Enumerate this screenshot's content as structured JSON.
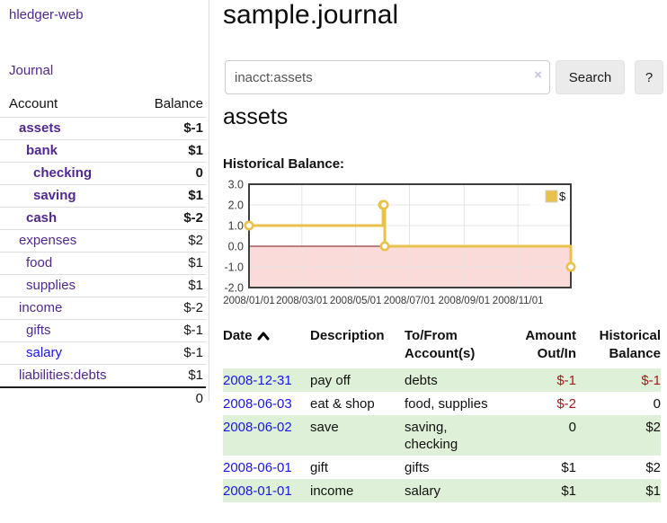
{
  "colors": {
    "purple_link": "#52288e",
    "blue_link": "#1b16e8",
    "negative": "#9e1a1a",
    "negative_muted": "#c48888",
    "row_stripe_green": "#dff0d8",
    "chart_line_gold": "#e8c24a",
    "chart_negative_fill": "#fbdada",
    "chart_zero_line": "#7d1010"
  },
  "brand": {
    "label": "hledger-web"
  },
  "nav": {
    "journal": "Journal"
  },
  "sidebar": {
    "header": {
      "account": "Account",
      "balance": "Balance"
    },
    "accounts": [
      {
        "name": "assets",
        "level": 1,
        "bold": true,
        "name_tone": "purple",
        "balance": "$-1",
        "balance_tone": "neg"
      },
      {
        "name": "bank",
        "level": 2,
        "bold": true,
        "name_tone": "purple",
        "balance": "$1",
        "balance_tone": ""
      },
      {
        "name": "checking",
        "level": 3,
        "bold": true,
        "name_tone": "purple",
        "balance": "0",
        "balance_tone": ""
      },
      {
        "name": "saving",
        "level": 3,
        "bold": true,
        "name_tone": "purple",
        "balance": "$1",
        "balance_tone": ""
      },
      {
        "name": "cash",
        "level": 2,
        "bold": true,
        "name_tone": "purple",
        "balance": "$-2",
        "balance_tone": "neg"
      },
      {
        "name": "expenses",
        "level": 1,
        "bold": false,
        "name_tone": "purple",
        "balance": "$2",
        "balance_tone": ""
      },
      {
        "name": "food",
        "level": 2,
        "bold": false,
        "name_tone": "purple",
        "balance": "$1",
        "balance_tone": ""
      },
      {
        "name": "supplies",
        "level": 2,
        "bold": false,
        "name_tone": "purple",
        "balance": "$1",
        "balance_tone": ""
      },
      {
        "name": "income",
        "level": 1,
        "bold": false,
        "name_tone": "purple",
        "balance": "$-2",
        "balance_tone": "mut"
      },
      {
        "name": "gifts",
        "level": 2,
        "bold": false,
        "name_tone": "purple",
        "balance": "$-1",
        "balance_tone": "mut"
      },
      {
        "name": "salary",
        "level": 2,
        "bold": false,
        "name_tone": "blue",
        "balance": "$-1",
        "balance_tone": "mut"
      },
      {
        "name": "liabilities:debts",
        "level": 1,
        "bold": false,
        "name_tone": "purple",
        "balance": "$1",
        "balance_tone": ""
      }
    ],
    "total": "0"
  },
  "page": {
    "title": "sample.journal",
    "account_title": "assets",
    "chart_heading": "Historical Balance:"
  },
  "search": {
    "value": "inacct:assets",
    "clear": "×",
    "submit": "Search",
    "help": "?"
  },
  "chart_data": {
    "type": "line",
    "step": true,
    "title": "Historical Balance:",
    "legend_label": "$",
    "series": [
      {
        "name": "$",
        "points": [
          [
            "2008-01-01",
            1
          ],
          [
            "2008-06-01",
            2
          ],
          [
            "2008-06-02",
            2
          ],
          [
            "2008-06-03",
            0
          ],
          [
            "2008-12-31",
            -1
          ]
        ]
      }
    ],
    "x_domain": [
      "2008-01-01",
      "2008-12-31"
    ],
    "x_tick_labels": [
      "2008/01/01",
      "2008/03/01",
      "2008/05/01",
      "2008/07/01",
      "2008/09/01",
      "2008/11/01"
    ],
    "y_tick_labels": [
      "3.0",
      "2.0",
      "1.0",
      "0.0",
      "-1.0",
      "-2.0"
    ],
    "ylim": [
      -2,
      3
    ],
    "grid": true,
    "legend_position": "top-right"
  },
  "register": {
    "columns": [
      {
        "label": "Date",
        "sortable": true,
        "align": "left"
      },
      {
        "label": "Description",
        "sortable": false,
        "align": "left"
      },
      {
        "label": "To/From Account(s)",
        "sortable": false,
        "align": "left"
      },
      {
        "label": "Amount Out/In",
        "sortable": false,
        "align": "right"
      },
      {
        "label": "Historical Balance",
        "sortable": false,
        "align": "right"
      }
    ],
    "rows": [
      {
        "date": "2008-12-31",
        "description": "pay off",
        "tofrom": "debts",
        "amount": "$-1",
        "amount_tone": "neg",
        "balance": "$-1",
        "balance_tone": "neg"
      },
      {
        "date": "2008-06-03",
        "description": "eat & shop",
        "tofrom": "food, supplies",
        "amount": "$-2",
        "amount_tone": "neg",
        "balance": "0",
        "balance_tone": ""
      },
      {
        "date": "2008-06-02",
        "description": "save",
        "tofrom": "saving, checking",
        "amount": "0",
        "amount_tone": "",
        "balance": "$2",
        "balance_tone": ""
      },
      {
        "date": "2008-06-01",
        "description": "gift",
        "tofrom": "gifts",
        "amount": "$1",
        "amount_tone": "",
        "balance": "$2",
        "balance_tone": ""
      },
      {
        "date": "2008-01-01",
        "description": "income",
        "tofrom": "salary",
        "amount": "$1",
        "amount_tone": "",
        "balance": "$1",
        "balance_tone": ""
      }
    ]
  }
}
